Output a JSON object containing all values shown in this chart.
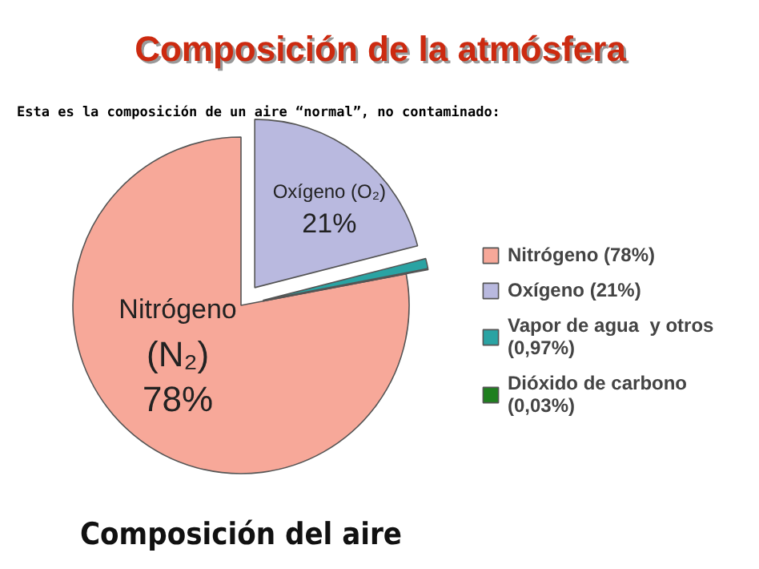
{
  "chart_data": {
    "type": "pie",
    "title": "Composición de la atmósfera",
    "subtitle": "Esta es la composición de un aire “normal”, no contaminado:",
    "categories": [
      "Nitrógeno (78%)",
      "Oxígeno (21%)",
      "Vapor de agua  y otros (0,97%)",
      "Dióxido de carbono (0,03%)"
    ],
    "values": [
      78,
      21,
      0.97,
      0.03
    ],
    "colors": [
      "#f7a899",
      "#b9b9df",
      "#2aa3a3",
      "#1f7f1f"
    ],
    "value_labels": [
      "Nitrógeno\n(N₂)\n78%",
      "Oxígeno (O₂)\n21%",
      null,
      null
    ],
    "annotations": [
      "Composición del aire"
    ],
    "legend": "right"
  }
}
